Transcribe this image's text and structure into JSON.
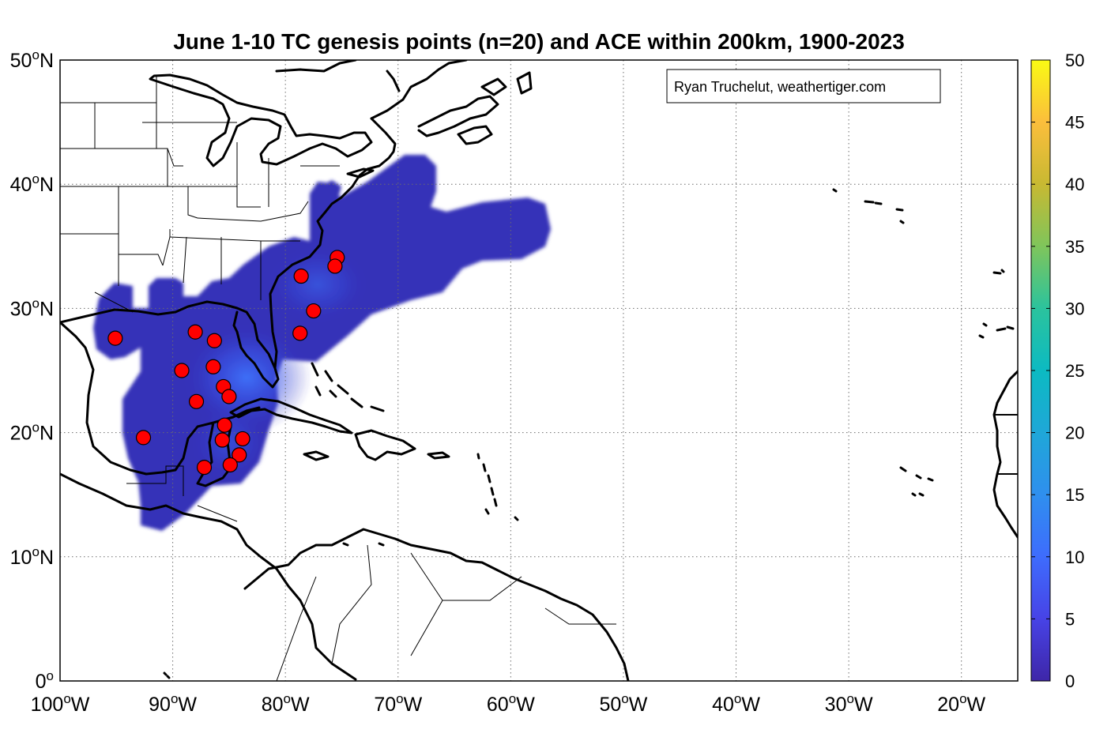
{
  "title": "June 1-10 TC genesis points (n=20) and ACE within 200km, 1900-2023",
  "credit": "Ryan Truchelut, weathertiger.com",
  "lat_ticks": [
    {
      "deg": "50",
      "hemi": "N",
      "value": 50
    },
    {
      "deg": "40",
      "hemi": "N",
      "value": 40
    },
    {
      "deg": "30",
      "hemi": "N",
      "value": 30
    },
    {
      "deg": "20",
      "hemi": "N",
      "value": 20
    },
    {
      "deg": "10",
      "hemi": "N",
      "value": 10
    },
    {
      "deg": "0",
      "hemi": "",
      "value": 0
    }
  ],
  "lon_ticks": [
    {
      "deg": "100",
      "hemi": "W",
      "value": -100
    },
    {
      "deg": "90",
      "hemi": "W",
      "value": -90
    },
    {
      "deg": "80",
      "hemi": "W",
      "value": -80
    },
    {
      "deg": "70",
      "hemi": "W",
      "value": -70
    },
    {
      "deg": "60",
      "hemi": "W",
      "value": -60
    },
    {
      "deg": "50",
      "hemi": "W",
      "value": -50
    },
    {
      "deg": "40",
      "hemi": "W",
      "value": -40
    },
    {
      "deg": "30",
      "hemi": "W",
      "value": -30
    },
    {
      "deg": "20",
      "hemi": "W",
      "value": -20
    }
  ],
  "colorbar": {
    "min": 0,
    "max": 50,
    "ticks": [
      "0",
      "5",
      "10",
      "15",
      "20",
      "25",
      "30",
      "35",
      "40",
      "45",
      "50"
    ],
    "colors": [
      "#3e26a8",
      "#4743e6",
      "#3e6cfd",
      "#2f8fee",
      "#1fa7d8",
      "#0cbac2",
      "#2bc39d",
      "#7fc55b",
      "#c8b932",
      "#fbbe3c",
      "#f9fa14"
    ]
  },
  "colors": {
    "ace_fill": "#3431b8",
    "ace_peak": "#3c60f4",
    "genesis_marker": "#ff0000",
    "coastline": "#000000"
  },
  "chart_data": {
    "type": "map",
    "title": "June 1-10 TC genesis points (n=20) and ACE within 200km, 1900-2023",
    "lon_range": [
      -100,
      -15
    ],
    "lat_range": [
      0,
      50
    ],
    "colorbar_range": [
      0,
      50
    ],
    "grid": true,
    "genesis_points": [
      {
        "lon": -95.1,
        "lat": 27.6
      },
      {
        "lon": -88.0,
        "lat": 28.1
      },
      {
        "lon": -86.3,
        "lat": 27.4
      },
      {
        "lon": -89.2,
        "lat": 25.0
      },
      {
        "lon": -86.4,
        "lat": 25.3
      },
      {
        "lon": -85.5,
        "lat": 23.7
      },
      {
        "lon": -85.0,
        "lat": 22.9
      },
      {
        "lon": -87.9,
        "lat": 22.5
      },
      {
        "lon": -85.4,
        "lat": 20.6
      },
      {
        "lon": -92.6,
        "lat": 19.6
      },
      {
        "lon": -85.6,
        "lat": 19.4
      },
      {
        "lon": -83.8,
        "lat": 19.5
      },
      {
        "lon": -84.1,
        "lat": 18.2
      },
      {
        "lon": -84.9,
        "lat": 17.4
      },
      {
        "lon": -87.2,
        "lat": 17.2
      },
      {
        "lon": -78.6,
        "lat": 32.6
      },
      {
        "lon": -75.4,
        "lat": 34.1
      },
      {
        "lon": -75.6,
        "lat": 33.4
      },
      {
        "lon": -77.5,
        "lat": 29.8
      },
      {
        "lon": -78.7,
        "lat": 28.0
      }
    ]
  }
}
